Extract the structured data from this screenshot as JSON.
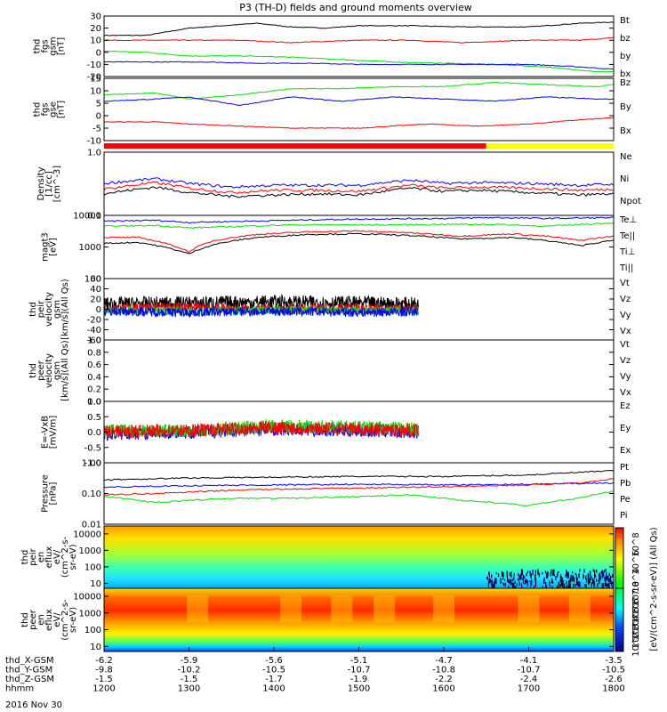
{
  "title": "P3 (TH-D) fields and ground moments overview",
  "date_label": "2016 Nov 30",
  "colors": {
    "black": "#000000",
    "red": "#ff0000",
    "green": "#00e000",
    "blue": "#0000ff",
    "yellow": "#ffff00",
    "bar_red": "#ff0000"
  },
  "chart_data": [
    {
      "type": "line",
      "panel": "fgs-gsm",
      "ylabel": [
        "thd",
        "fgs",
        "gsm",
        "[nT]"
      ],
      "ylim": [
        -20,
        30
      ],
      "yticks": [
        "30",
        "20",
        "10",
        "0",
        "-10",
        "-20"
      ],
      "legend": [
        {
          "label": "Bt",
          "color": "black"
        },
        {
          "label": "bz",
          "color": "red"
        },
        {
          "label": "by",
          "color": "green"
        },
        {
          "label": "bx",
          "color": "blue"
        }
      ],
      "series": [
        {
          "name": "Bt",
          "color": "black",
          "x": [
            1200,
            1250,
            1300,
            1340,
            1380,
            1420,
            1460,
            1500,
            1560,
            1620,
            1700,
            1760,
            1800
          ],
          "values": [
            14,
            14,
            20,
            22,
            24,
            21,
            20,
            22,
            22,
            21,
            21,
            24,
            25
          ]
        },
        {
          "name": "bz",
          "color": "red",
          "x": [
            1200,
            1260,
            1300,
            1360,
            1420,
            1500,
            1560,
            1620,
            1700,
            1760,
            1800
          ],
          "values": [
            10,
            10,
            10,
            10,
            8,
            10,
            10,
            8,
            10,
            10,
            12
          ]
        },
        {
          "name": "by",
          "color": "green",
          "x": [
            1200,
            1250,
            1300,
            1360,
            1420,
            1480,
            1540,
            1600,
            1660,
            1720,
            1780,
            1800
          ],
          "values": [
            1,
            0,
            -3,
            -3,
            -4,
            -6,
            -8,
            -9,
            -10,
            -12,
            -16,
            -16
          ]
        },
        {
          "name": "bx",
          "color": "blue",
          "x": [
            1200,
            1260,
            1320,
            1380,
            1440,
            1500,
            1560,
            1620,
            1700,
            1760,
            1800
          ],
          "values": [
            -8,
            -8,
            -8,
            -9,
            -9,
            -10,
            -10,
            -10,
            -10,
            -12,
            -14
          ]
        }
      ]
    },
    {
      "type": "line",
      "panel": "fgs-gse",
      "ylabel": [
        "thd",
        "fgs",
        "gse",
        "[nT]"
      ],
      "ylim": [
        -15,
        15
      ],
      "yticks": [
        "15",
        "10",
        "5",
        "0",
        "-5",
        "-10"
      ],
      "legend": [
        {
          "label": "Bz",
          "color": "red"
        },
        {
          "label": "By",
          "color": "green"
        },
        {
          "label": "Bx",
          "color": "blue"
        }
      ],
      "series": [
        {
          "name": "Bz",
          "color": "red",
          "x": [
            1200,
            1260,
            1300,
            1360,
            1420,
            1500,
            1580,
            1640,
            1700,
            1760,
            1800
          ],
          "values": [
            -6,
            -6,
            -7,
            -8,
            -9,
            -9,
            -7,
            -8,
            -7,
            -5,
            -4
          ]
        },
        {
          "name": "By",
          "color": "green",
          "x": [
            1200,
            1260,
            1300,
            1360,
            1420,
            1480,
            1540,
            1600,
            1660,
            1720,
            1780,
            1800
          ],
          "values": [
            7,
            8,
            5,
            7,
            10,
            10,
            11,
            11,
            13,
            12,
            11,
            12
          ]
        },
        {
          "name": "Bx",
          "color": "blue",
          "x": [
            1200,
            1260,
            1300,
            1360,
            1420,
            1480,
            1540,
            1600,
            1660,
            1720,
            1780,
            1800
          ],
          "values": [
            4,
            5,
            6,
            2,
            6,
            4,
            6,
            5,
            4,
            6,
            5,
            5
          ]
        }
      ]
    },
    {
      "type": "line",
      "panel": "density",
      "scale": "log",
      "ylabel": [
        "Density",
        "[1/cc]",
        "[cm^-3]"
      ],
      "ylim": [
        0.1,
        1.0
      ],
      "yticks": [
        "1.0",
        "0.1"
      ],
      "legend": [
        {
          "label": "Ne",
          "color": "red"
        },
        {
          "label": "Ni",
          "color": "black"
        },
        {
          "label": "Npot",
          "color": "blue"
        }
      ],
      "series": [
        {
          "name": "Npot",
          "color": "blue",
          "x": [
            1200,
            1260,
            1300,
            1350,
            1400,
            1450,
            1500,
            1560,
            1600,
            1640,
            1700,
            1760,
            1800
          ],
          "values": [
            0.32,
            0.38,
            0.32,
            0.28,
            0.3,
            0.3,
            0.3,
            0.36,
            0.32,
            0.33,
            0.32,
            0.3,
            0.31
          ]
        },
        {
          "name": "Ne",
          "color": "red",
          "x": [
            1200,
            1260,
            1300,
            1350,
            1400,
            1450,
            1500,
            1560,
            1600,
            1640,
            1700,
            1760,
            1800
          ],
          "values": [
            0.26,
            0.33,
            0.27,
            0.23,
            0.25,
            0.25,
            0.24,
            0.3,
            0.27,
            0.28,
            0.27,
            0.25,
            0.26
          ]
        },
        {
          "name": "Ni",
          "color": "black",
          "x": [
            1200,
            1260,
            1300,
            1350,
            1400,
            1450,
            1500,
            1560,
            1600,
            1640,
            1700,
            1760,
            1800
          ],
          "values": [
            0.22,
            0.28,
            0.23,
            0.2,
            0.21,
            0.22,
            0.21,
            0.27,
            0.24,
            0.25,
            0.23,
            0.21,
            0.22
          ]
        }
      ]
    },
    {
      "type": "line",
      "panel": "temperature",
      "scale": "log",
      "ylabel": [
        "magt3",
        "[eV]"
      ],
      "ylim": [
        100,
        10000
      ],
      "yticks": [
        "10000",
        "1000",
        "100"
      ],
      "legend": [
        {
          "label": "Te⊥",
          "color": "red"
        },
        {
          "label": "Te||",
          "color": "black"
        },
        {
          "label": "Ti⊥",
          "color": "blue"
        },
        {
          "label": "Ti||",
          "color": "green"
        }
      ],
      "series": [
        {
          "name": "Ti⊥",
          "color": "blue",
          "x": [
            1200,
            1260,
            1300,
            1360,
            1420,
            1480,
            1540,
            1600,
            1660,
            1720,
            1800
          ],
          "values": [
            6500,
            7000,
            6000,
            6500,
            7000,
            7500,
            7800,
            8000,
            8500,
            8000,
            8500
          ]
        },
        {
          "name": "Ti||",
          "color": "green",
          "x": [
            1200,
            1260,
            1300,
            1360,
            1420,
            1480,
            1540,
            1600,
            1660,
            1720,
            1800
          ],
          "values": [
            4500,
            4800,
            4000,
            4500,
            5000,
            5000,
            5000,
            5200,
            5200,
            4500,
            5800
          ]
        },
        {
          "name": "Te⊥",
          "color": "red",
          "x": [
            1200,
            1240,
            1300,
            1330,
            1380,
            1440,
            1500,
            1560,
            1620,
            1680,
            1720,
            1760,
            1800
          ],
          "values": [
            2000,
            2000,
            700,
            1600,
            2500,
            3000,
            3200,
            2800,
            2200,
            2600,
            2200,
            1600,
            2200
          ]
        },
        {
          "name": "Te||",
          "color": "black",
          "x": [
            1200,
            1240,
            1300,
            1330,
            1380,
            1440,
            1500,
            1560,
            1620,
            1680,
            1720,
            1760,
            1800
          ],
          "values": [
            1300,
            1400,
            600,
            1200,
            2000,
            2500,
            2600,
            2300,
            1800,
            2000,
            1600,
            1100,
            1600
          ]
        }
      ]
    },
    {
      "type": "line",
      "panel": "peir-velocity",
      "ylabel": [
        "thd",
        "peir",
        "velocity",
        "gsm",
        "[km/s](All Qs)"
      ],
      "ylim": [
        -60,
        60
      ],
      "yticks": [
        "60",
        "40",
        "20",
        "0",
        "-20",
        "-40",
        "-60"
      ],
      "legend": [
        {
          "label": "Vt",
          "color": "black"
        },
        {
          "label": "Vz",
          "color": "red"
        },
        {
          "label": "Vy",
          "color": "green"
        },
        {
          "label": "Vx",
          "color": "blue"
        }
      ],
      "series": [
        {
          "name": "Vt",
          "color": "black",
          "x": [
            1200,
            1300,
            1400,
            1500,
            1570
          ],
          "values": [
            10,
            12,
            14,
            12,
            10
          ]
        },
        {
          "name": "Vz",
          "color": "red",
          "x": [
            1200,
            1300,
            1400,
            1500,
            1570
          ],
          "values": [
            2,
            4,
            0,
            2,
            0
          ]
        },
        {
          "name": "Vy",
          "color": "green",
          "x": [
            1200,
            1300,
            1400,
            1500,
            1570
          ],
          "values": [
            -2,
            -4,
            -2,
            -4,
            -3
          ]
        },
        {
          "name": "Vx",
          "color": "blue",
          "x": [
            1200,
            1300,
            1400,
            1500,
            1570
          ],
          "values": [
            -4,
            -6,
            -4,
            -6,
            -5
          ]
        }
      ]
    },
    {
      "type": "line",
      "panel": "peer-velocity",
      "ylabel": [
        "thd",
        "peer",
        "velocity",
        "gsm",
        "[km/s](All Qs)"
      ],
      "ylim": [
        0,
        1
      ],
      "yticks": [
        "1.0",
        "0.8",
        "0.6",
        "0.4",
        "0.2",
        "0.0"
      ],
      "legend": [
        {
          "label": "Vt",
          "color": "black"
        },
        {
          "label": "Vz",
          "color": "red"
        },
        {
          "label": "Vy",
          "color": "green"
        },
        {
          "label": "Vx",
          "color": "blue"
        }
      ],
      "series": []
    },
    {
      "type": "line",
      "panel": "efield",
      "ylabel": [
        "E=-VxB",
        "[mV/m]"
      ],
      "ylim": [
        -1,
        1
      ],
      "yticks": [
        "1.0",
        "0.5",
        "0.0",
        "-0.5",
        "-1.0"
      ],
      "legend": [
        {
          "label": "Ez",
          "color": "red"
        },
        {
          "label": "Ey",
          "color": "green"
        },
        {
          "label": "Ex",
          "color": "blue"
        }
      ],
      "series": [
        {
          "name": "Ex",
          "color": "blue",
          "x": [
            1200,
            1300,
            1400,
            1500,
            1570
          ],
          "values": [
            -0.05,
            0,
            0.1,
            0.05,
            0
          ]
        },
        {
          "name": "Ey",
          "color": "green",
          "x": [
            1200,
            1300,
            1400,
            1500,
            1570
          ],
          "values": [
            0.05,
            0.05,
            0.2,
            0.15,
            0.1
          ]
        },
        {
          "name": "Ez",
          "color": "red",
          "x": [
            1200,
            1300,
            1400,
            1500,
            1570
          ],
          "values": [
            0,
            0.05,
            0.15,
            0.1,
            0.05
          ]
        }
      ]
    },
    {
      "type": "line",
      "panel": "pressure",
      "scale": "log",
      "ylabel": [
        "Pressure",
        "[nPa]"
      ],
      "ylim": [
        0.01,
        1.0
      ],
      "yticks": [
        "1.00",
        "0.10",
        "0.01"
      ],
      "legend": [
        {
          "label": "Pt",
          "color": "black"
        },
        {
          "label": "Pb",
          "color": "red"
        },
        {
          "label": "Pe",
          "color": "green"
        },
        {
          "label": "Pi",
          "color": "blue"
        }
      ],
      "series": [
        {
          "name": "Pt",
          "color": "black",
          "x": [
            1200,
            1300,
            1400,
            1500,
            1600,
            1700,
            1800
          ],
          "values": [
            0.28,
            0.32,
            0.34,
            0.36,
            0.36,
            0.4,
            0.55
          ]
        },
        {
          "name": "Pi",
          "color": "blue",
          "x": [
            1200,
            1300,
            1400,
            1500,
            1600,
            1700,
            1800
          ],
          "values": [
            0.16,
            0.18,
            0.19,
            0.2,
            0.19,
            0.2,
            0.22
          ]
        },
        {
          "name": "Pb",
          "color": "red",
          "x": [
            1200,
            1260,
            1300,
            1360,
            1420,
            1500,
            1560,
            1620,
            1700,
            1760,
            1800
          ],
          "values": [
            0.09,
            0.1,
            0.11,
            0.13,
            0.14,
            0.15,
            0.16,
            0.17,
            0.19,
            0.22,
            0.3
          ]
        },
        {
          "name": "Pe",
          "color": "green",
          "x": [
            1200,
            1260,
            1300,
            1360,
            1420,
            1500,
            1560,
            1620,
            1700,
            1760,
            1800
          ],
          "values": [
            0.08,
            0.05,
            0.06,
            0.07,
            0.07,
            0.08,
            0.09,
            0.06,
            0.04,
            0.07,
            0.12
          ]
        }
      ]
    },
    {
      "type": "heatmap",
      "panel": "peir-eflux",
      "scale": "log",
      "ylabel": [
        "thd",
        "peir",
        "en",
        "eflux",
        "eV/",
        "(cm^2-s-",
        "sr-eV)"
      ],
      "ylim": [
        5,
        30000
      ],
      "yticks": [
        "10000",
        "1000",
        "100",
        "10"
      ]
    },
    {
      "type": "heatmap",
      "panel": "peer-eflux",
      "scale": "log",
      "ylabel": [
        "thd",
        "peer",
        "en",
        "eflux",
        "eV/",
        "(cm^2-s-",
        "sr-eV)"
      ],
      "ylim": [
        5,
        30000
      ],
      "yticks": [
        "10000",
        "1000",
        "100",
        "10"
      ]
    }
  ],
  "mode_bar": {
    "transition_x": 1650
  },
  "colorbar": {
    "label": "[eV/(cm^2-s-sr-eV)] (All Qs)",
    "upper_ticks": [
      "10^8",
      "10^6",
      "10^4"
    ],
    "lower_ticks": [
      "10^8",
      "10^7",
      "10^6",
      "10^5",
      "10^4",
      "10^3",
      "10^2"
    ]
  },
  "xaxis": {
    "range": [
      1200,
      1800
    ],
    "rows": [
      {
        "label": "thd_X-GSM",
        "values": [
          "-6.2",
          "-5.9",
          "-5.6",
          "-5.1",
          "-4.7",
          "-4.1",
          "-3.5"
        ]
      },
      {
        "label": "thd_Y-GSM",
        "values": [
          "-9.8",
          "-10.2",
          "-10.5",
          "-10.7",
          "-10.8",
          "-10.7",
          "-10.5"
        ]
      },
      {
        "label": "thd_Z-GSM",
        "values": [
          "-1.5",
          "-1.5",
          "-1.7",
          "-1.9",
          "-2.2",
          "-2.4",
          "-2.6"
        ]
      },
      {
        "label": "hhmm",
        "values": [
          "1200",
          "1300",
          "1400",
          "1500",
          "1600",
          "1700",
          "1800"
        ]
      }
    ]
  }
}
